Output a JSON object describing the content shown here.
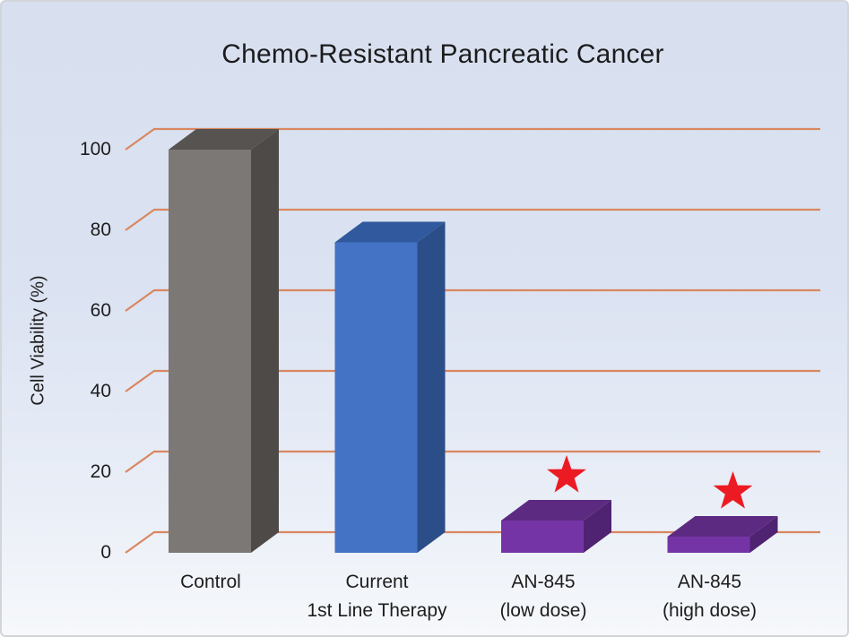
{
  "title": "Chemo-Resistant Pancreatic Cancer",
  "yaxis": {
    "label": "Cell Viability (%)",
    "ticks": [
      "0",
      "20",
      "40",
      "60",
      "80",
      "100"
    ]
  },
  "xaxis": {
    "labels": [
      {
        "line1": "Control",
        "line2": ""
      },
      {
        "line1": "Current",
        "line2": "1st Line Therapy"
      },
      {
        "line1": "AN-845",
        "line2": "(low dose)"
      },
      {
        "line1": "AN-845",
        "line2": "(high dose)"
      }
    ]
  },
  "chart_data": {
    "type": "bar",
    "style": "3d-column",
    "title": "Chemo-Resistant Pancreatic Cancer",
    "xlabel": "",
    "ylabel": "Cell Viability (%)",
    "ylim": [
      0,
      100
    ],
    "yticks": [
      0,
      20,
      40,
      60,
      80,
      100
    ],
    "grid": true,
    "legend": false,
    "categories": [
      "Control",
      "Current 1st Line Therapy",
      "AN-845 (low dose)",
      "AN-845 (high dose)"
    ],
    "values": [
      100,
      77,
      8,
      4
    ],
    "significance": [
      false,
      false,
      true,
      true
    ],
    "significance_marker": "red star",
    "colors": {
      "gridline": "#d98760",
      "text": "#1d1d1d",
      "background_top": "#d9e1f1",
      "background_bottom": "#f5f7fb",
      "star": "#ec1b23",
      "bars": [
        {
          "front": "#7b7876",
          "top": "#575351",
          "side": "#4e4a48"
        },
        {
          "front": "#4472c4",
          "top": "#30599e",
          "side": "#2b4d88"
        },
        {
          "front": "#7434a6",
          "top": "#5c2b81",
          "side": "#4f2371"
        },
        {
          "front": "#7434a6",
          "top": "#5c2b81",
          "side": "#4f2371"
        }
      ]
    }
  }
}
